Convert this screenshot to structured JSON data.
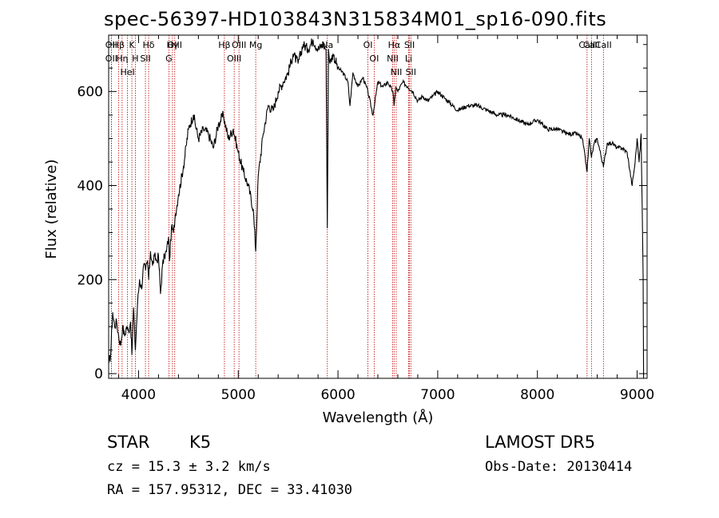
{
  "chart_data": {
    "type": "line",
    "title": "spec-56397-HD103843N315834M01_sp16-090.fits",
    "xlabel": "Wavelength (Å)",
    "ylabel": "Flux (relative)",
    "xlim": [
      3700,
      9100
    ],
    "ylim": [
      -10,
      720
    ],
    "x_ticks": [
      4000,
      5000,
      6000,
      7000,
      8000,
      9000
    ],
    "y_ticks": [
      0,
      200,
      400,
      600
    ],
    "grid": false,
    "series": [
      {
        "x": [
          3700,
          3720,
          3740,
          3760,
          3780,
          3800,
          3820,
          3840,
          3860,
          3880,
          3900,
          3920,
          3933,
          3950,
          3968,
          3990,
          4010,
          4030,
          4050,
          4070,
          4090,
          4101,
          4120,
          4140,
          4160,
          4180,
          4200,
          4220,
          4240,
          4260,
          4280,
          4300,
          4310,
          4330,
          4350,
          4370,
          4400,
          4450,
          4500,
          4550,
          4600,
          4650,
          4700,
          4750,
          4800,
          4850,
          4900,
          4950,
          5000,
          5050,
          5100,
          5150,
          5175,
          5200,
          5250,
          5300,
          5350,
          5400,
          5450,
          5500,
          5550,
          5600,
          5650,
          5700,
          5750,
          5800,
          5850,
          5880,
          5893,
          5905,
          5920,
          5950,
          6000,
          6050,
          6100,
          6120,
          6150,
          6200,
          6250,
          6300,
          6350,
          6400,
          6450,
          6500,
          6550,
          6563,
          6580,
          6600,
          6650,
          6700,
          6750,
          6800,
          6850,
          6900,
          6950,
          7000,
          7100,
          7200,
          7300,
          7400,
          7500,
          7600,
          7700,
          7800,
          7900,
          8000,
          8100,
          8200,
          8300,
          8400,
          8450,
          8498,
          8520,
          8542,
          8570,
          8600,
          8662,
          8700,
          8750,
          8800,
          8850,
          8900,
          8950,
          8980,
          9000,
          9020,
          9040,
          9060
        ],
        "values": [
          20,
          40,
          130,
          100,
          110,
          80,
          60,
          100,
          80,
          100,
          90,
          110,
          40,
          140,
          50,
          150,
          200,
          180,
          230,
          220,
          240,
          200,
          260,
          230,
          250,
          240,
          250,
          170,
          230,
          250,
          260,
          290,
          240,
          310,
          300,
          340,
          380,
          440,
          520,
          550,
          500,
          520,
          510,
          480,
          530,
          550,
          500,
          520,
          470,
          430,
          400,
          350,
          260,
          420,
          510,
          570,
          560,
          600,
          620,
          640,
          680,
          660,
          700,
          690,
          710,
          690,
          700,
          690,
          310,
          690,
          660,
          680,
          650,
          640,
          620,
          570,
          640,
          610,
          630,
          600,
          550,
          620,
          610,
          620,
          600,
          570,
          610,
          600,
          620,
          610,
          600,
          580,
          590,
          580,
          590,
          600,
          580,
          560,
          570,
          570,
          560,
          550,
          550,
          540,
          530,
          540,
          520,
          520,
          510,
          510,
          500,
          430,
          500,
          460,
          490,
          500,
          440,
          490,
          490,
          480,
          480,
          470,
          400,
          450,
          500,
          450,
          510,
          210
        ]
      }
    ],
    "line_markers": [
      {
        "label": "Hβ",
        "x": 3799
      },
      {
        "label": "OII",
        "x": 3727
      },
      {
        "label": "OII",
        "x": 3727
      },
      {
        "label": "Hη",
        "x": 3835
      },
      {
        "label": "HeI",
        "x": 3889
      },
      {
        "label": "K",
        "x": 3933
      },
      {
        "label": "H",
        "x": 3968
      },
      {
        "label": "Hδ",
        "x": 4101
      },
      {
        "label": "SII",
        "x": 4069
      },
      {
        "label": "OIII",
        "x": 4363
      },
      {
        "label": "Hγ",
        "x": 4340
      },
      {
        "label": "G",
        "x": 4304
      },
      {
        "label": "Hβ",
        "x": 4861
      },
      {
        "label": "OIII",
        "x": 5007
      },
      {
        "label": "OIII",
        "x": 4959
      },
      {
        "label": "Mg",
        "x": 5175
      },
      {
        "label": "Na",
        "x": 5893
      },
      {
        "label": "OI",
        "x": 6300
      },
      {
        "label": "OI",
        "x": 6363
      },
      {
        "label": "Hα",
        "x": 6563
      },
      {
        "label": "NII",
        "x": 6548
      },
      {
        "label": "NII",
        "x": 6584
      },
      {
        "label": "SII",
        "x": 6717
      },
      {
        "label": "Li",
        "x": 6708
      },
      {
        "label": "SII",
        "x": 6731
      },
      {
        "label": "CaII",
        "x": 8498
      },
      {
        "label": "CaII",
        "x": 8542
      },
      {
        "label": "CaII",
        "x": 8662
      }
    ],
    "colors": {
      "spectrum": "#000000",
      "markers": "#c00000"
    }
  },
  "info": {
    "class_label": "STAR",
    "subclass": "K5",
    "survey": "LAMOST DR5",
    "redshift": "cz = 15.3 ± 3.2 km/s",
    "obs_date": "Obs-Date: 20130414",
    "coords": "RA = 157.95312, DEC =  33.41030"
  }
}
